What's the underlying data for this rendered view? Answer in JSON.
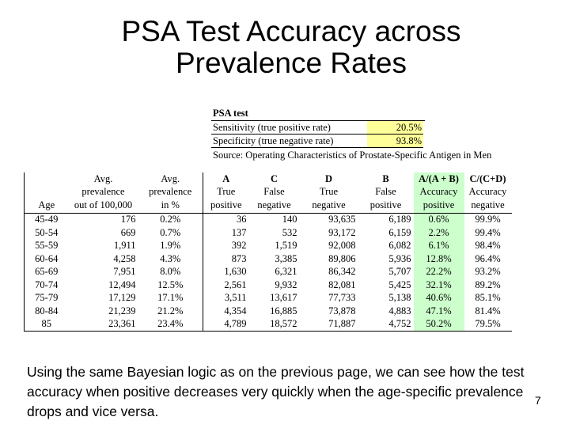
{
  "title": "PSA Test Accuracy across Prevalence Rates",
  "psa_test": {
    "header": "PSA test",
    "sensitivity_label": "Sensitivity (true positive rate)",
    "sensitivity_value": "20.5%",
    "specificity_label": "Specificity (true negative rate)",
    "specificity_value": "93.8%",
    "source": "Source: Operating Characteristics of Prostate-Specific Antigen in Men",
    "highlight_color": "#ffff99"
  },
  "table": {
    "highlight_color": "#ccffcc",
    "headers": {
      "row1": [
        "",
        "Avg.",
        "Avg.",
        "A",
        "C",
        "D",
        "B",
        "A/(A + B)",
        "C/(C+D)"
      ],
      "row2": [
        "",
        "prevalence",
        "prevalence",
        "True",
        "False",
        "True",
        "False",
        "Accuracy",
        "Accuracy"
      ],
      "row3": [
        "Age",
        "out of 100,000",
        "in %",
        "positive",
        "negative",
        "negative",
        "positive",
        "positive",
        "negative"
      ]
    },
    "rows": [
      [
        "45-49",
        "176",
        "0.2%",
        "36",
        "140",
        "93,635",
        "6,189",
        "0.6%",
        "99.9%"
      ],
      [
        "50-54",
        "669",
        "0.7%",
        "137",
        "532",
        "93,172",
        "6,159",
        "2.2%",
        "99.4%"
      ],
      [
        "55-59",
        "1,911",
        "1.9%",
        "392",
        "1,519",
        "92,008",
        "6,082",
        "6.1%",
        "98.4%"
      ],
      [
        "60-64",
        "4,258",
        "4.3%",
        "873",
        "3,385",
        "89,806",
        "5,936",
        "12.8%",
        "96.4%"
      ],
      [
        "65-69",
        "7,951",
        "8.0%",
        "1,630",
        "6,321",
        "86,342",
        "5,707",
        "22.2%",
        "93.2%"
      ],
      [
        "70-74",
        "12,494",
        "12.5%",
        "2,561",
        "9,932",
        "82,081",
        "5,425",
        "32.1%",
        "89.2%"
      ],
      [
        "75-79",
        "17,129",
        "17.1%",
        "3,511",
        "13,617",
        "77,733",
        "5,138",
        "40.6%",
        "85.1%"
      ],
      [
        "80-84",
        "21,239",
        "21.2%",
        "4,354",
        "16,885",
        "73,878",
        "4,883",
        "47.1%",
        "81.4%"
      ],
      [
        "85",
        "23,361",
        "23.4%",
        "4,789",
        "18,572",
        "71,887",
        "4,752",
        "50.2%",
        "79.5%"
      ]
    ]
  },
  "footer_text": "Using the same Bayesian logic as on the previous page, we can see how the test accuracy when positive decreases very quickly when the age-specific prevalence drops and vice versa.",
  "page_number": "7"
}
